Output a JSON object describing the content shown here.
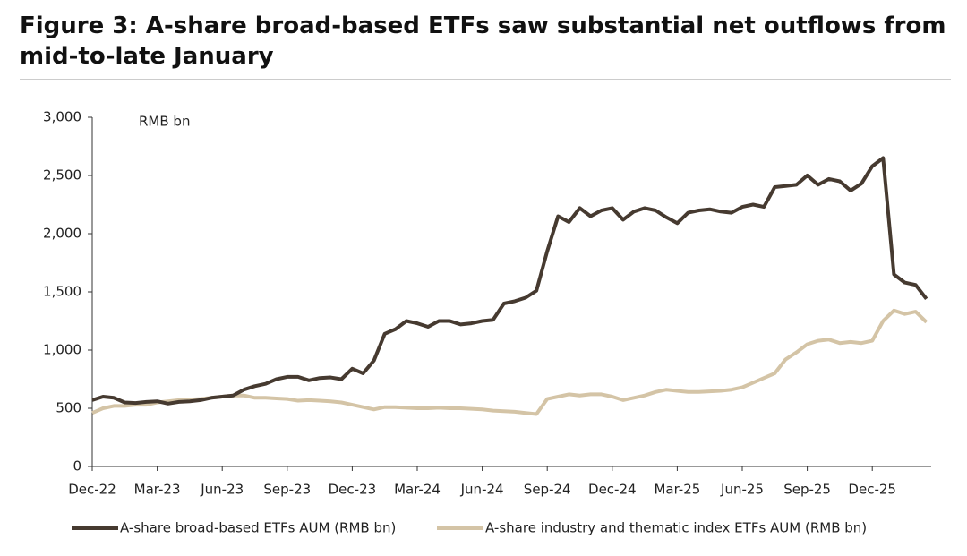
{
  "chart_data": {
    "type": "line",
    "title": "Figure 3: A-share broad-based ETFs saw substantial net outflows from mid-to-late January",
    "y_label": "RMB bn",
    "categories": [
      "Dec-22",
      null,
      null,
      null,
      null,
      null,
      "Mar-23",
      null,
      null,
      null,
      null,
      null,
      "Jun-23",
      null,
      null,
      null,
      null,
      null,
      "Sep-23",
      null,
      null,
      null,
      null,
      null,
      "Dec-23",
      null,
      null,
      null,
      null,
      null,
      "Mar-24",
      null,
      null,
      null,
      null,
      null,
      "Jun-24",
      null,
      null,
      null,
      null,
      null,
      "Sep-24",
      null,
      null,
      null,
      null,
      null,
      "Dec-24",
      null,
      null,
      null,
      null,
      null,
      "Mar-25",
      null,
      null,
      null,
      null,
      null,
      "Jun-25",
      null,
      null,
      null,
      null,
      null,
      "Sep-25",
      null,
      null,
      null,
      null,
      null,
      "Dec-25",
      null,
      null,
      null,
      null,
      null
    ],
    "series": [
      {
        "name": "A-share broad-based ETFs AUM (RMB bn)",
        "color": "#463a30",
        "values": [
          570,
          600,
          590,
          550,
          545,
          555,
          560,
          540,
          555,
          560,
          570,
          590,
          600,
          610,
          660,
          690,
          710,
          750,
          770,
          770,
          740,
          760,
          765,
          750,
          840,
          800,
          910,
          1140,
          1180,
          1250,
          1230,
          1200,
          1250,
          1250,
          1220,
          1230,
          1250,
          1260,
          1400,
          1420,
          1450,
          1510,
          1850,
          2150,
          2100,
          2220,
          2150,
          2200,
          2220,
          2120,
          2190,
          2220,
          2200,
          2140,
          2090,
          2180,
          2200,
          2210,
          2190,
          2180,
          2230,
          2250,
          2230,
          2400,
          2410,
          2420,
          2500,
          2420,
          2470,
          2450,
          2370,
          2430,
          2580,
          2650,
          1650,
          1580,
          1560,
          1440
        ]
      },
      {
        "name": "A-share industry and thematic index ETFs AUM (RMB bn)",
        "color": "#d4c4a6",
        "values": [
          460,
          500,
          520,
          520,
          530,
          530,
          550,
          560,
          570,
          575,
          580,
          590,
          600,
          610,
          610,
          590,
          590,
          585,
          580,
          565,
          570,
          565,
          560,
          550,
          530,
          510,
          490,
          510,
          510,
          505,
          500,
          500,
          505,
          500,
          500,
          495,
          490,
          480,
          475,
          470,
          460,
          450,
          580,
          600,
          620,
          610,
          620,
          620,
          600,
          570,
          590,
          610,
          640,
          660,
          650,
          640,
          640,
          645,
          650,
          660,
          680,
          720,
          760,
          800,
          920,
          980,
          1050,
          1080,
          1090,
          1060,
          1070,
          1060,
          1080,
          1250,
          1340,
          1310,
          1330,
          1240
        ]
      }
    ],
    "ylim": [
      0,
      3000
    ],
    "yticks": [
      0,
      500,
      {
        "value": 1000,
        "label": "1,000"
      },
      {
        "value": 1500,
        "label": "1,500"
      },
      {
        "value": 2000,
        "label": "2,000"
      },
      {
        "value": 2500,
        "label": "2,500"
      },
      {
        "value": 3000,
        "label": "3,000"
      }
    ],
    "grid": false
  }
}
